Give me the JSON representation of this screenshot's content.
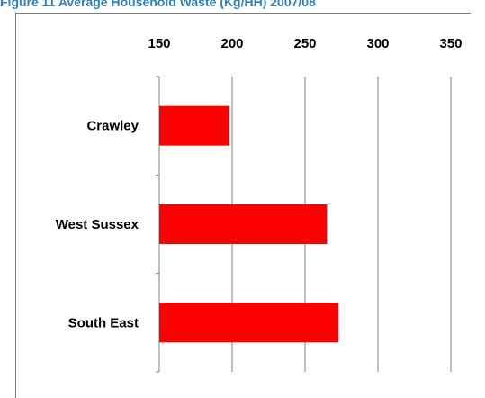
{
  "caption": "Figure 11 Average Household Waste (Kg/HH) 2007/08",
  "chart_data": {
    "type": "bar",
    "orientation": "horizontal",
    "categories": [
      "Crawley",
      "West Sussex",
      "South East"
    ],
    "values": [
      198,
      265,
      273
    ],
    "xlim": [
      150,
      350
    ],
    "xticks": [
      150,
      200,
      250,
      300,
      350
    ],
    "x_axis_position": "top",
    "grid": "vertical",
    "colors": {
      "bar": "#ff0000",
      "grid": "#808080",
      "axis": "#808080"
    },
    "title": "",
    "xlabel": "",
    "ylabel": ""
  }
}
